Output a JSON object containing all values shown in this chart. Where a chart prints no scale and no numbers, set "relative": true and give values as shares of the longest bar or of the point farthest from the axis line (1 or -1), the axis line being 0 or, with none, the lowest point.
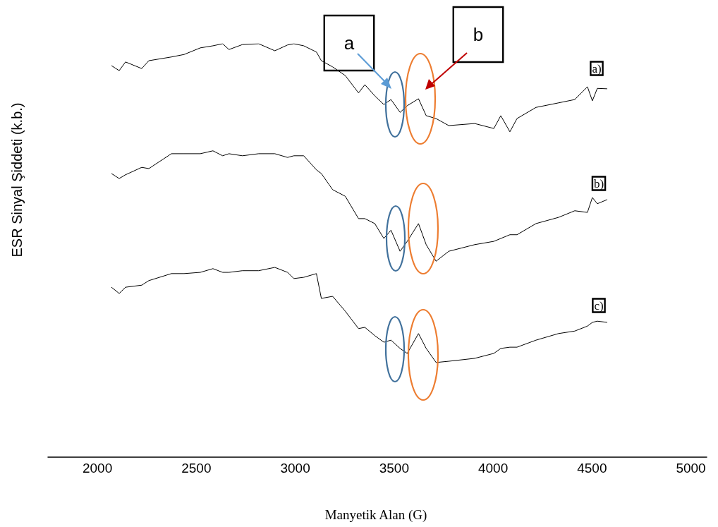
{
  "chart_data": {
    "type": "line",
    "relative": true,
    "marker": "none",
    "xlabel": "Manyetik Alan (G)",
    "ylabel": "ESR Sinyal Şiddeti (k.b.)",
    "xlim": [
      1750,
      5080
    ],
    "xticks": [
      2000,
      2500,
      3000,
      3500,
      4000,
      4500,
      5000
    ],
    "x": [
      2071,
      2110,
      2142,
      2224,
      2260,
      2374,
      2438,
      2520,
      2584,
      2633,
      2665,
      2733,
      2815,
      2897,
      2961,
      2993,
      3043,
      3107,
      3132,
      3189,
      3253,
      3320,
      3352,
      3402,
      3448,
      3484,
      3530,
      3566,
      3623,
      3662,
      3712,
      3776,
      3907,
      4004,
      4039,
      4085,
      4121,
      4217,
      4331,
      4413,
      4477,
      4502,
      4527,
      4577
    ],
    "series": [
      {
        "color": "#000000",
        "values": [
          0.947,
          0.935,
          0.956,
          0.94,
          0.959,
          0.968,
          0.974,
          0.99,
          0.995,
          1.0,
          0.986,
          0.998,
          1.0,
          0.983,
          0.997,
          1.0,
          0.995,
          0.98,
          0.959,
          0.944,
          0.923,
          0.881,
          0.901,
          0.874,
          0.853,
          0.865,
          0.834,
          0.85,
          0.867,
          0.826,
          0.819,
          0.802,
          0.807,
          0.795,
          0.826,
          0.787,
          0.819,
          0.846,
          0.857,
          0.865,
          0.896,
          0.862,
          0.892,
          0.891
        ]
      },
      {
        "color": "#000000",
        "values": [
          0.686,
          0.674,
          0.683,
          0.701,
          0.698,
          0.734,
          0.734,
          0.734,
          0.741,
          0.729,
          0.734,
          0.729,
          0.734,
          0.734,
          0.725,
          0.729,
          0.729,
          0.695,
          0.686,
          0.647,
          0.631,
          0.577,
          0.577,
          0.565,
          0.529,
          0.549,
          0.498,
          0.522,
          0.565,
          0.514,
          0.474,
          0.498,
          0.514,
          0.522,
          0.529,
          0.538,
          0.538,
          0.565,
          0.58,
          0.596,
          0.592,
          0.628,
          0.613,
          0.623
        ]
      },
      {
        "color": "#000000",
        "values": [
          0.411,
          0.396,
          0.411,
          0.416,
          0.427,
          0.444,
          0.444,
          0.447,
          0.456,
          0.447,
          0.447,
          0.451,
          0.451,
          0.459,
          0.447,
          0.432,
          0.435,
          0.444,
          0.384,
          0.389,
          0.353,
          0.311,
          0.314,
          0.294,
          0.278,
          0.283,
          0.263,
          0.251,
          0.299,
          0.263,
          0.229,
          0.232,
          0.239,
          0.251,
          0.263,
          0.266,
          0.266,
          0.283,
          0.299,
          0.305,
          0.317,
          0.326,
          0.329,
          0.326
        ]
      }
    ],
    "annotations": [
      "a",
      "b",
      "a)",
      "b)",
      "c)"
    ]
  }
}
